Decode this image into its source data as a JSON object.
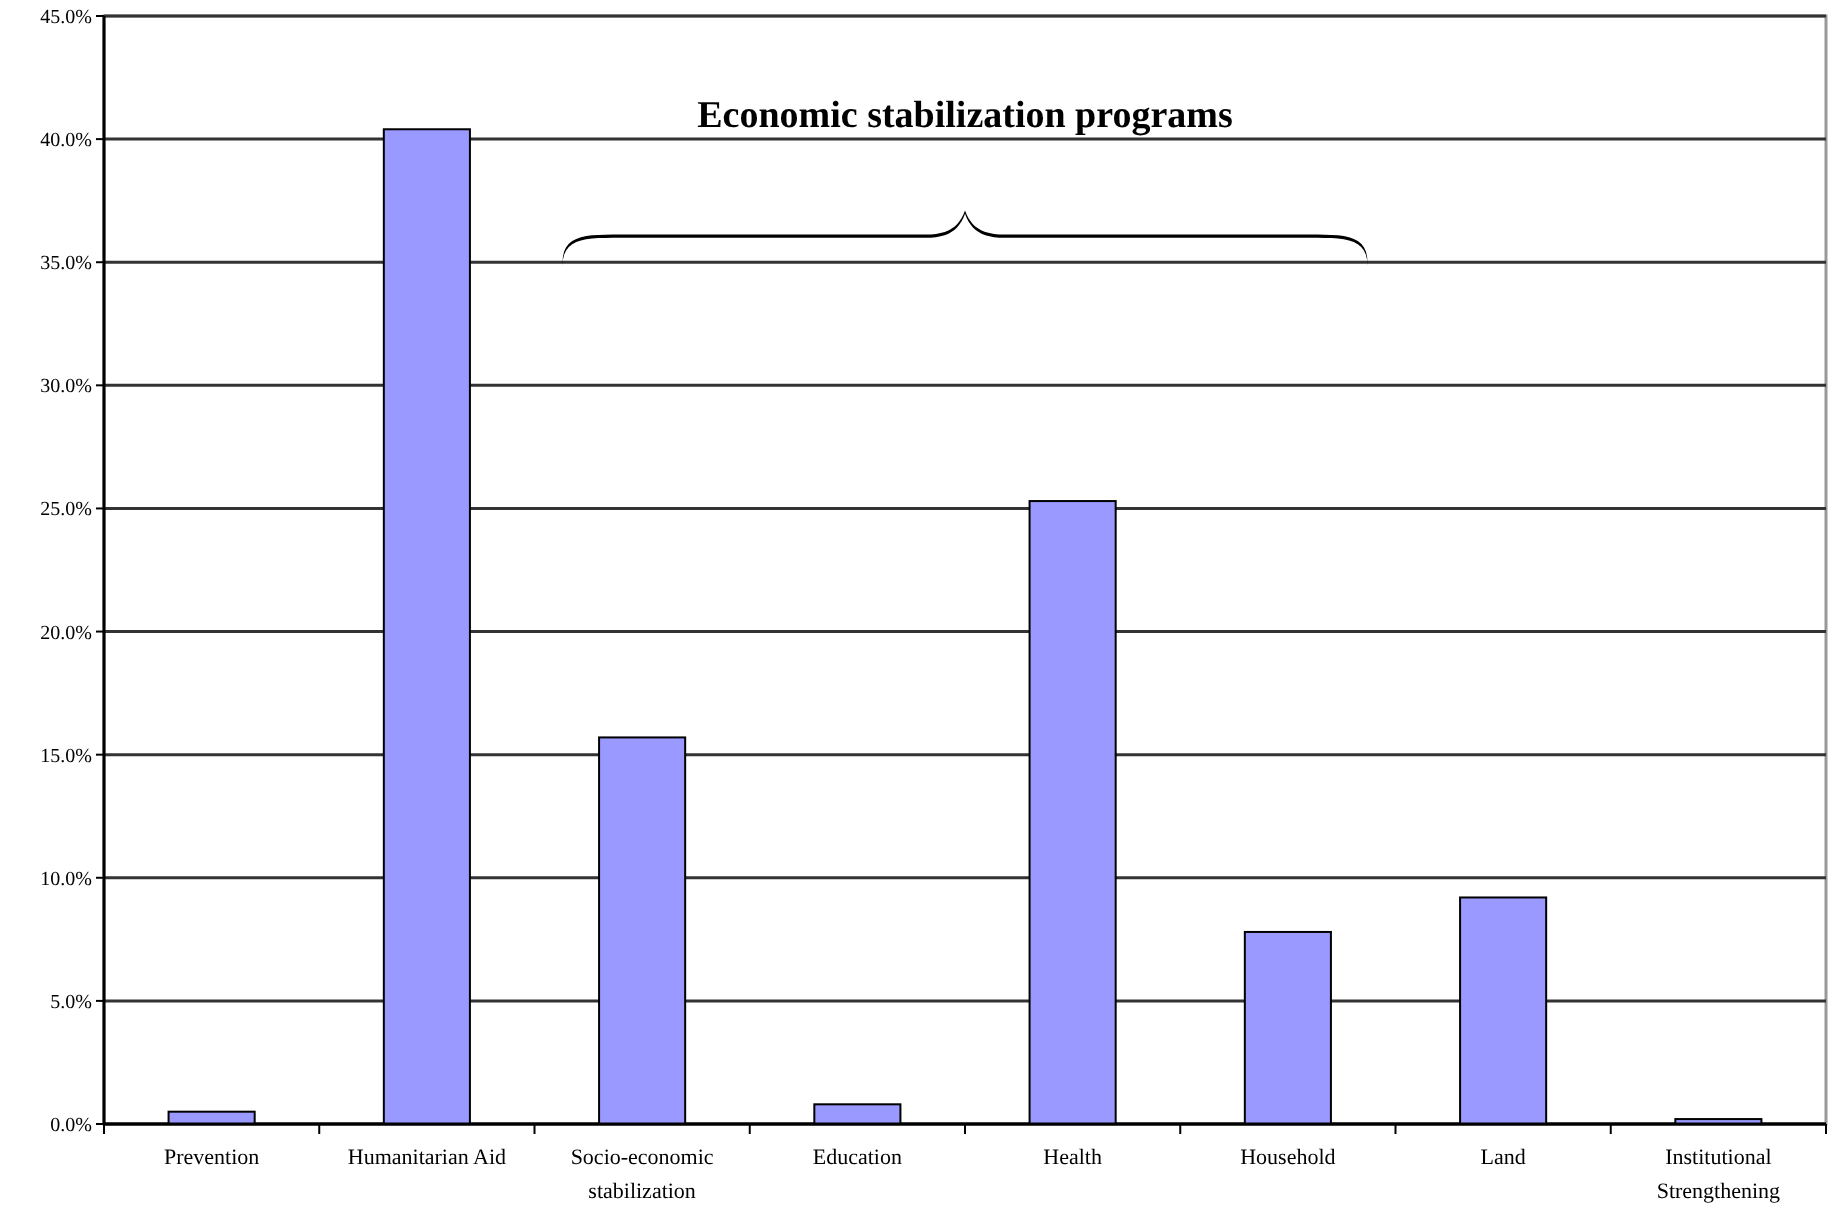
{
  "chart_data": {
    "type": "bar",
    "categories": [
      "Prevention",
      "Humanitarian Aid",
      "Socio-economic stabilization",
      "Education",
      "Health",
      "Household",
      "Land",
      "Institutional Strengthening"
    ],
    "values": [
      0.5,
      40.4,
      15.7,
      0.8,
      25.3,
      7.8,
      9.2,
      0.2
    ],
    "color": "#9999ff",
    "ylim": [
      0,
      45
    ],
    "yticks": [
      {
        "value": 0,
        "label": "0.0%"
      },
      {
        "value": 5,
        "label": "5.0%"
      },
      {
        "value": 10,
        "label": "10.0%"
      },
      {
        "value": 15,
        "label": "15.0%"
      },
      {
        "value": 20,
        "label": "20.0%"
      },
      {
        "value": 25,
        "label": "25.0%"
      },
      {
        "value": 30,
        "label": "30.0%"
      },
      {
        "value": 35,
        "label": "35.0%"
      },
      {
        "value": 40,
        "label": "40.0%"
      },
      {
        "value": 45,
        "label": "45.0%"
      }
    ],
    "grid": "y",
    "annotations": [
      "Economic stabilization programs"
    ]
  }
}
